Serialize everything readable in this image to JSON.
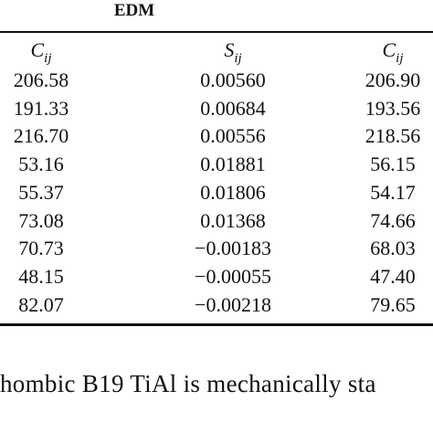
{
  "table": {
    "title": "EDM",
    "columns": [
      {
        "symbol": "C",
        "subscript": "ij"
      },
      {
        "symbol": "S",
        "subscript": "ij"
      },
      {
        "symbol": "C",
        "subscript": "ij"
      }
    ],
    "rows": [
      [
        "206.58",
        "0.00560",
        "206.90"
      ],
      [
        "191.33",
        "0.00684",
        "193.56"
      ],
      [
        "216.70",
        "0.00556",
        "218.56"
      ],
      [
        "53.16",
        "0.01881",
        "56.15"
      ],
      [
        "55.37",
        "0.01806",
        "54.17"
      ],
      [
        "73.08",
        "0.01368",
        "74.66"
      ],
      [
        "70.73",
        "−0.00183",
        "68.03"
      ],
      [
        "48.15",
        "−0.00055",
        "47.40"
      ],
      [
        "82.07",
        "−0.00218",
        "79.65"
      ]
    ]
  },
  "caption": "hombic B19 TiAl is mechanically sta"
}
